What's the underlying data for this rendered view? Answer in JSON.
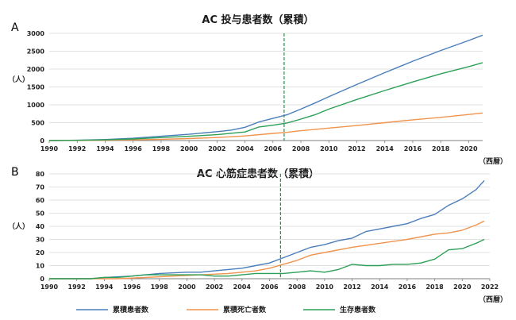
{
  "panels": {
    "a": {
      "label": "A",
      "title": "AC 投与患者数（累積）",
      "y_unit": "（人）",
      "x_unit": "（西暦）"
    },
    "b": {
      "label": "B",
      "title": "AC 心筋症患者数（累積）",
      "y_unit": "（人）",
      "x_unit": "（西暦）"
    }
  },
  "legend": [
    {
      "label": "累積患者数",
      "color": "#4a7ebb"
    },
    {
      "label": "累積死亡者数",
      "color": "#f0934c"
    },
    {
      "label": "生存患者数",
      "color": "#2ca057"
    }
  ],
  "colors": {
    "grid": "#d9d9d9",
    "axis": "#7f7f7f",
    "marker": "#1a9a3a"
  },
  "chart_data": [
    {
      "type": "line",
      "title": "AC 投与患者数（累積）",
      "xlabel": "（西暦）",
      "ylabel": "（人）",
      "xlim": [
        1990,
        2021
      ],
      "ylim": [
        0,
        3000
      ],
      "x_ticks": [
        "1990",
        "1992",
        "1994",
        "1996",
        "1998",
        "2000",
        "2002",
        "2004",
        "2006",
        "2008",
        "2010",
        "2012",
        "2014",
        "2016",
        "2018",
        "2020"
      ],
      "y_ticks": [
        0,
        500,
        1000,
        1500,
        2000,
        2500,
        3000
      ],
      "marker_x": 2006.8,
      "series": [
        {
          "name": "累積患者数",
          "points": [
            [
              1990,
              0
            ],
            [
              1992,
              10
            ],
            [
              1994,
              30
            ],
            [
              1996,
              65
            ],
            [
              1998,
              120
            ],
            [
              2000,
              175
            ],
            [
              2002,
              250
            ],
            [
              2003,
              290
            ],
            [
              2004,
              370
            ],
            [
              2005,
              520
            ],
            [
              2006,
              620
            ],
            [
              2007,
              720
            ],
            [
              2008,
              880
            ],
            [
              2009,
              1050
            ],
            [
              2010,
              1230
            ],
            [
              2012,
              1570
            ],
            [
              2014,
              1900
            ],
            [
              2016,
              2220
            ],
            [
              2018,
              2520
            ],
            [
              2020,
              2800
            ],
            [
              2021,
              2950
            ]
          ]
        },
        {
          "name": "累積死亡者数",
          "points": [
            [
              1990,
              0
            ],
            [
              1992,
              3
            ],
            [
              1994,
              10
            ],
            [
              1996,
              20
            ],
            [
              1998,
              35
            ],
            [
              2000,
              55
            ],
            [
              2002,
              85
            ],
            [
              2004,
              130
            ],
            [
              2006,
              200
            ],
            [
              2007,
              230
            ],
            [
              2008,
              275
            ],
            [
              2010,
              350
            ],
            [
              2012,
              420
            ],
            [
              2014,
              500
            ],
            [
              2016,
              580
            ],
            [
              2018,
              650
            ],
            [
              2020,
              730
            ],
            [
              2021,
              770
            ]
          ]
        },
        {
          "name": "生存患者数",
          "points": [
            [
              1990,
              0
            ],
            [
              1992,
              7
            ],
            [
              1994,
              20
            ],
            [
              1996,
              45
            ],
            [
              1998,
              85
            ],
            [
              2000,
              120
            ],
            [
              2002,
              165
            ],
            [
              2004,
              240
            ],
            [
              2005,
              380
            ],
            [
              2006,
              430
            ],
            [
              2007,
              490
            ],
            [
              2008,
              600
            ],
            [
              2009,
              720
            ],
            [
              2010,
              880
            ],
            [
              2012,
              1150
            ],
            [
              2014,
              1400
            ],
            [
              2016,
              1640
            ],
            [
              2018,
              1870
            ],
            [
              2020,
              2070
            ],
            [
              2021,
              2180
            ]
          ]
        }
      ]
    },
    {
      "type": "line",
      "title": "AC 心筋症患者数（累積）",
      "xlabel": "（西暦）",
      "ylabel": "（人）",
      "xlim": [
        1990,
        2022
      ],
      "ylim": [
        0,
        80
      ],
      "x_ticks": [
        "1990",
        "1992",
        "1994",
        "1996",
        "1998",
        "2000",
        "2002",
        "2004",
        "2006",
        "2008",
        "2010",
        "2012",
        "2014",
        "2016",
        "2018",
        "2020",
        "2022"
      ],
      "y_ticks": [
        0,
        10,
        20,
        30,
        40,
        50,
        60,
        70,
        80
      ],
      "marker_x": 2006.8,
      "series": [
        {
          "name": "累積患者数",
          "points": [
            [
              1990,
              0
            ],
            [
              1993,
              0
            ],
            [
              1994,
              1
            ],
            [
              1996,
              2
            ],
            [
              1998,
              4
            ],
            [
              2000,
              5
            ],
            [
              2001,
              5
            ],
            [
              2002,
              6
            ],
            [
              2003,
              7
            ],
            [
              2004,
              8
            ],
            [
              2005,
              10
            ],
            [
              2006,
              12
            ],
            [
              2007,
              16
            ],
            [
              2008,
              20
            ],
            [
              2009,
              24
            ],
            [
              2010,
              26
            ],
            [
              2011,
              29
            ],
            [
              2012,
              31
            ],
            [
              2013,
              36
            ],
            [
              2014,
              38
            ],
            [
              2015,
              40
            ],
            [
              2016,
              42
            ],
            [
              2017,
              46
            ],
            [
              2018,
              49
            ],
            [
              2019,
              56
            ],
            [
              2020,
              61
            ],
            [
              2021,
              68
            ],
            [
              2021.6,
              75
            ]
          ]
        },
        {
          "name": "累積死亡者数",
          "points": [
            [
              1990,
              0
            ],
            [
              1993,
              0
            ],
            [
              1995,
              0
            ],
            [
              1997,
              1
            ],
            [
              1999,
              2
            ],
            [
              2001,
              3
            ],
            [
              2003,
              4
            ],
            [
              2004,
              5
            ],
            [
              2005,
              6
            ],
            [
              2006,
              8
            ],
            [
              2007,
              11
            ],
            [
              2008,
              14
            ],
            [
              2009,
              18
            ],
            [
              2010,
              20
            ],
            [
              2012,
              24
            ],
            [
              2014,
              27
            ],
            [
              2016,
              30
            ],
            [
              2018,
              34
            ],
            [
              2019,
              35
            ],
            [
              2020,
              37
            ],
            [
              2021,
              41
            ],
            [
              2021.6,
              44
            ]
          ]
        },
        {
          "name": "生存患者数",
          "points": [
            [
              1990,
              0
            ],
            [
              1993,
              0
            ],
            [
              1994,
              1
            ],
            [
              1995,
              1
            ],
            [
              1996,
              2
            ],
            [
              1997,
              3
            ],
            [
              1998,
              3
            ],
            [
              2000,
              3
            ],
            [
              2001,
              3
            ],
            [
              2002,
              2
            ],
            [
              2003,
              2
            ],
            [
              2004,
              3
            ],
            [
              2005,
              4
            ],
            [
              2006,
              4
            ],
            [
              2007,
              4
            ],
            [
              2008,
              5
            ],
            [
              2009,
              6
            ],
            [
              2010,
              5
            ],
            [
              2011,
              7
            ],
            [
              2012,
              11
            ],
            [
              2013,
              10
            ],
            [
              2014,
              10
            ],
            [
              2015,
              11
            ],
            [
              2016,
              11
            ],
            [
              2017,
              12
            ],
            [
              2018,
              15
            ],
            [
              2019,
              22
            ],
            [
              2020,
              23
            ],
            [
              2021,
              27
            ],
            [
              2021.6,
              30
            ]
          ]
        }
      ]
    }
  ]
}
